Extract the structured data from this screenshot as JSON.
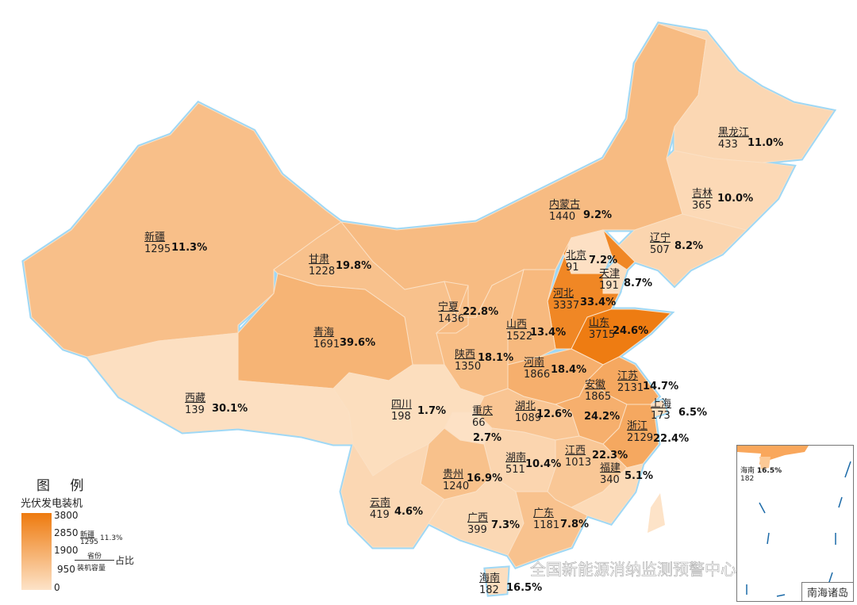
{
  "legend": {
    "title": "图 例",
    "subtitle": "光伏发电装机",
    "ticks": [
      "3800",
      "2850",
      "1900",
      "950",
      "0"
    ],
    "range": [
      0,
      3800
    ],
    "color_low": "#fde3c8",
    "color_high": "#ee7a0e",
    "example_name": "新疆",
    "example_value": "1295",
    "example_pct": "11.3%",
    "key_top": "省份",
    "key_bottom": "装机容量",
    "key_right": "占比"
  },
  "inset": {
    "title": "南海诸岛",
    "hainan_name": "海南",
    "hainan_value": "182",
    "hainan_pct": "16.5%"
  },
  "watermark": "全国新能源消纳监测预警中心",
  "provinces": [
    {
      "id": "xinjiang",
      "name": "新疆",
      "value": 1295,
      "pct": "11.3%"
    },
    {
      "id": "gansu",
      "name": "甘肃",
      "value": 1228,
      "pct": "19.8%"
    },
    {
      "id": "qinghai",
      "name": "青海",
      "value": 1691,
      "pct": "39.6%"
    },
    {
      "id": "xizang",
      "name": "西藏",
      "value": 139,
      "pct": "30.1%"
    },
    {
      "id": "neimenggu",
      "name": "内蒙古",
      "value": 1440,
      "pct": "9.2%"
    },
    {
      "id": "heilongjiang",
      "name": "黑龙江",
      "value": 433,
      "pct": "11.0%"
    },
    {
      "id": "jilin",
      "name": "吉林",
      "value": 365,
      "pct": "10.0%"
    },
    {
      "id": "liaoning",
      "name": "辽宁",
      "value": 507,
      "pct": "8.2%"
    },
    {
      "id": "beijing",
      "name": "北京",
      "value": 91,
      "pct": "7.2%"
    },
    {
      "id": "tianjin",
      "name": "天津",
      "value": 191,
      "pct": "8.7%"
    },
    {
      "id": "hebei",
      "name": "河北",
      "value": 3337,
      "pct": "33.4%"
    },
    {
      "id": "shandong",
      "name": "山东",
      "value": 3715,
      "pct": "24.6%"
    },
    {
      "id": "ningxia",
      "name": "宁夏",
      "value": 1436,
      "pct": "22.8%"
    },
    {
      "id": "shanxi",
      "name": "山西",
      "value": 1522,
      "pct": "13.4%"
    },
    {
      "id": "shaanxi",
      "name": "陕西",
      "value": 1350,
      "pct": "18.1%"
    },
    {
      "id": "henan",
      "name": "河南",
      "value": 1866,
      "pct": "18.4%"
    },
    {
      "id": "jiangsu",
      "name": "江苏",
      "value": 2131,
      "pct": "14.7%"
    },
    {
      "id": "anhui",
      "name": "安徽",
      "value": 1865,
      "pct": "24.2%"
    },
    {
      "id": "shanghai",
      "name": "上海",
      "value": 173,
      "pct": "6.5%"
    },
    {
      "id": "sichuan",
      "name": "四川",
      "value": 198,
      "pct": "1.7%"
    },
    {
      "id": "chongqing",
      "name": "重庆",
      "value": 66,
      "pct": "2.7%"
    },
    {
      "id": "hubei",
      "name": "湖北",
      "value": 1089,
      "pct": "12.6%"
    },
    {
      "id": "zhejiang",
      "name": "浙江",
      "value": 2129,
      "pct": "22.4%"
    },
    {
      "id": "hunan",
      "name": "湖南",
      "value": 511,
      "pct": "10.4%"
    },
    {
      "id": "jiangxi",
      "name": "江西",
      "value": 1013,
      "pct": "22.3%"
    },
    {
      "id": "guizhou",
      "name": "贵州",
      "value": 1240,
      "pct": "16.9%"
    },
    {
      "id": "fujian",
      "name": "福建",
      "value": 340,
      "pct": "5.1%"
    },
    {
      "id": "yunnan",
      "name": "云南",
      "value": 419,
      "pct": "4.6%"
    },
    {
      "id": "guangxi",
      "name": "广西",
      "value": 399,
      "pct": "7.3%"
    },
    {
      "id": "guangdong",
      "name": "广东",
      "value": 1181,
      "pct": "7.8%"
    },
    {
      "id": "hainan",
      "name": "海南",
      "value": 182,
      "pct": "16.5%"
    }
  ]
}
